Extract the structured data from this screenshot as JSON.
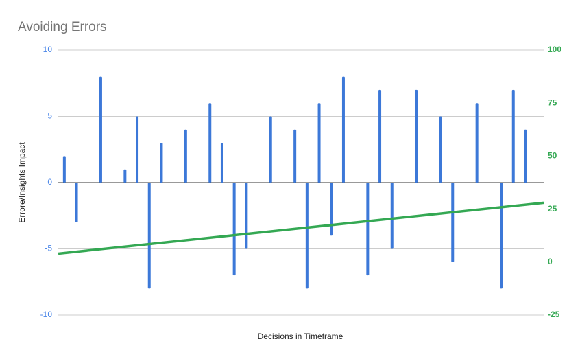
{
  "chart_data": {
    "type": "bar",
    "title": "Avoiding Errors",
    "x_label": "Decisions in Timeframe",
    "y_label": "Errore/Insights Impact",
    "categories": [
      null,
      null,
      null,
      null,
      null,
      null,
      null,
      null,
      null,
      null,
      null,
      null,
      null,
      null,
      null,
      null,
      null,
      null,
      null,
      null,
      null,
      null,
      null,
      null,
      null,
      null,
      null,
      null,
      null,
      null,
      null,
      null,
      null,
      null,
      null,
      null,
      null,
      null,
      null,
      null
    ],
    "series": [
      {
        "color": "#3c78d8",
        "values": [
          2,
          -3,
          null,
          8,
          null,
          1,
          5,
          -8,
          3,
          null,
          4,
          null,
          6,
          3,
          -7,
          -5,
          null,
          5,
          null,
          4,
          -8,
          6,
          -4,
          8,
          null,
          -7,
          7,
          -5,
          null,
          7,
          null,
          5,
          -6,
          null,
          6,
          null,
          -8,
          7,
          4,
          null
        ]
      }
    ],
    "trend": {
      "axis": "y2",
      "color": "#34a853",
      "values": [
        4,
        28
      ]
    },
    "ylim": [
      -10,
      10
    ],
    "yticks": [
      -10,
      -5,
      0,
      5,
      10
    ],
    "y2lim": [
      -25,
      100
    ],
    "y2ticks": [
      -25,
      0,
      25,
      50,
      75,
      100
    ],
    "grid": true
  }
}
